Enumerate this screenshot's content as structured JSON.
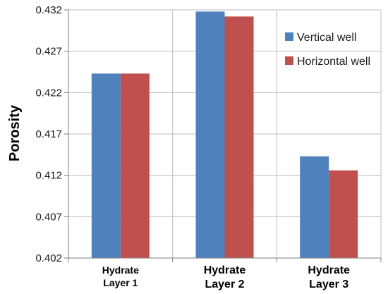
{
  "chart_data": {
    "type": "bar",
    "ylabel": "Porosity",
    "xlabel": "",
    "ylim": [
      0.402,
      0.432
    ],
    "yticks": [
      "0.402",
      "0.407",
      "0.412",
      "0.417",
      "0.422",
      "0.427",
      "0.432"
    ],
    "categories": [
      [
        "Hydrate",
        "Layer 1"
      ],
      [
        "Hydrate",
        "Layer 2"
      ],
      [
        "Hydrate",
        "Layer 3"
      ]
    ],
    "series": [
      {
        "name": "Vertical well",
        "color": "#4f81bd",
        "values": [
          0.4243,
          0.4318,
          0.4143
        ]
      },
      {
        "name": "Horizontal well",
        "color": "#c0504d",
        "values": [
          0.4243,
          0.4312,
          0.4126
        ]
      }
    ],
    "grid": true,
    "legend_position": "top-right"
  }
}
